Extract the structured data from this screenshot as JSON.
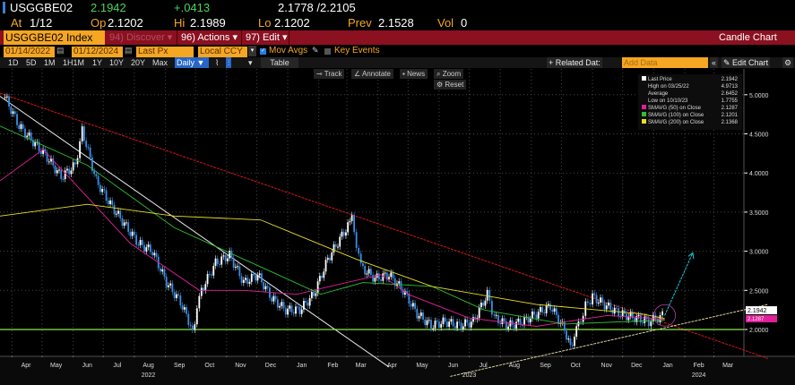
{
  "quote": {
    "ticker": "USGGBE02",
    "last": "2.1942",
    "change": "+.0413",
    "range": "2.1778 /2.2105",
    "at_label": "At",
    "at": "1/12",
    "op_label": "Op",
    "op": "2.1202",
    "hi_label": "Hi",
    "hi": "2.1989",
    "lo_label": "Lo",
    "lo": "2.1202",
    "prev_label": "Prev",
    "prev": "2.1528",
    "vol_label": "Vol",
    "vol": "0"
  },
  "menubar": {
    "security": "USGGBE02 Index",
    "discover": "94) Discover",
    "actions": "96) Actions",
    "edit": "97) Edit",
    "chart_type": "Candle Chart"
  },
  "controls": {
    "start_date": "01/14/2022",
    "end_date": "01/12/2024",
    "field": "Last Px",
    "currency": "Local CCY",
    "mov_avgs": "Mov Avgs",
    "mov_avgs_checked": true,
    "key_events": "Key Events",
    "key_events_checked": false,
    "periods": [
      "1D",
      "5D",
      "1M",
      "1H1M",
      "1Y",
      "10Y",
      "20Y",
      "Max"
    ],
    "frequency": "Daily",
    "table": "Table",
    "related_data": "+ Related Dat:",
    "add_data_placeholder": "Add Data",
    "edit_chart": "Edit Chart"
  },
  "chart_tools": {
    "track": "Track",
    "annotate": "Annotate",
    "news": "News",
    "zoom": "Zoom",
    "reset": "Reset"
  },
  "colors": {
    "accent": "#f5a623",
    "menubar": "#8b1020",
    "up": "#ffffff",
    "down": "#3a8ee6",
    "sma50": "#e0209a",
    "sma100": "#30c030",
    "sma200": "#e8e020",
    "trend_red": "#d01818",
    "trend_white": "#e8e8e8",
    "trend_support": "#d8d0a0",
    "arrow": "#20c8d8",
    "circle": "#b040b0",
    "hline": "#8ee84a"
  },
  "legend": [
    {
      "label": "Last Price",
      "value": "2.1942",
      "color": "#ffffff"
    },
    {
      "label": "High on 03/25/22",
      "value": "4.9713"
    },
    {
      "label": "Average",
      "value": "2.6452"
    },
    {
      "label": "Low on 10/10/23",
      "value": "1.7755"
    },
    {
      "label": "SMAVG (50)  on Close",
      "value": "2.1287",
      "color": "#e0209a"
    },
    {
      "label": "SMAVG (100)  on Close",
      "value": "2.1201",
      "color": "#30c030"
    },
    {
      "label": "SMAVG (200)  on Close",
      "value": "2.1368",
      "color": "#e8e020"
    }
  ],
  "chart_data": {
    "type": "candlestick",
    "ylim": [
      1.4,
      5.2
    ],
    "yticks": [
      "5.0000",
      "4.5000",
      "4.0000",
      "3.5000",
      "3.0000",
      "2.5000",
      "2.0000"
    ],
    "ytick_values": [
      5.0,
      4.5,
      4.0,
      3.5,
      3.0,
      2.5,
      2.0
    ],
    "last_price_tag": "2.1942",
    "sma50_tag": "2.1287",
    "xlim": [
      "2022-03-20",
      "2024-03-31"
    ],
    "xticks": [
      {
        "label": "Apr",
        "date": "2022-04-15"
      },
      {
        "label": "May",
        "date": "2022-05-15"
      },
      {
        "label": "Jun",
        "date": "2022-06-15"
      },
      {
        "label": "Jul",
        "date": "2022-07-15"
      },
      {
        "label": "Aug",
        "date": "2022-08-15"
      },
      {
        "label": "Sep",
        "date": "2022-09-15"
      },
      {
        "label": "Oct",
        "date": "2022-10-15"
      },
      {
        "label": "Nov",
        "date": "2022-11-15"
      },
      {
        "label": "Dec",
        "date": "2022-12-15"
      },
      {
        "label": "Jan",
        "date": "2023-01-15"
      },
      {
        "label": "Feb",
        "date": "2023-02-15"
      },
      {
        "label": "Mar",
        "date": "2023-03-15"
      },
      {
        "label": "Apr",
        "date": "2023-04-15"
      },
      {
        "label": "May",
        "date": "2023-05-15"
      },
      {
        "label": "Jun",
        "date": "2023-06-15"
      },
      {
        "label": "Jul",
        "date": "2023-07-15"
      },
      {
        "label": "Aug",
        "date": "2023-08-15"
      },
      {
        "label": "Sep",
        "date": "2023-09-15"
      },
      {
        "label": "Oct",
        "date": "2023-10-15"
      },
      {
        "label": "Nov",
        "date": "2023-11-15"
      },
      {
        "label": "Dec",
        "date": "2023-12-15"
      },
      {
        "label": "Jan",
        "date": "2024-01-15"
      },
      {
        "label": "Feb",
        "date": "2024-02-15"
      },
      {
        "label": "Mar",
        "date": "2024-03-15"
      }
    ],
    "years": [
      {
        "label": "2022",
        "date": "2022-08-15"
      },
      {
        "label": "2023",
        "date": "2023-07-01"
      },
      {
        "label": "2024",
        "date": "2024-02-15"
      }
    ],
    "grid": true,
    "price": [
      [
        "2022-03-25",
        4.97
      ],
      [
        "2022-04-08",
        4.6
      ],
      [
        "2022-04-22",
        4.4
      ],
      [
        "2022-05-06",
        4.2
      ],
      [
        "2022-05-20",
        3.95
      ],
      [
        "2022-06-03",
        4.1
      ],
      [
        "2022-06-10",
        4.55
      ],
      [
        "2022-06-24",
        3.9
      ],
      [
        "2022-07-08",
        3.6
      ],
      [
        "2022-07-22",
        3.35
      ],
      [
        "2022-08-05",
        3.1
      ],
      [
        "2022-08-19",
        3.0
      ],
      [
        "2022-09-02",
        2.6
      ],
      [
        "2022-09-16",
        2.35
      ],
      [
        "2022-09-28",
        2.0
      ],
      [
        "2022-10-07",
        2.5
      ],
      [
        "2022-10-21",
        2.85
      ],
      [
        "2022-11-04",
        2.95
      ],
      [
        "2022-11-18",
        2.6
      ],
      [
        "2022-12-02",
        2.7
      ],
      [
        "2022-12-16",
        2.4
      ],
      [
        "2022-12-30",
        2.25
      ],
      [
        "2023-01-13",
        2.25
      ],
      [
        "2023-01-27",
        2.45
      ],
      [
        "2023-02-10",
        2.9
      ],
      [
        "2023-02-24",
        3.2
      ],
      [
        "2023-03-06",
        3.4
      ],
      [
        "2023-03-15",
        2.8
      ],
      [
        "2023-03-29",
        2.65
      ],
      [
        "2023-04-12",
        2.7
      ],
      [
        "2023-04-26",
        2.5
      ],
      [
        "2023-05-10",
        2.2
      ],
      [
        "2023-05-24",
        2.05
      ],
      [
        "2023-06-07",
        2.1
      ],
      [
        "2023-06-21",
        2.05
      ],
      [
        "2023-07-05",
        2.1
      ],
      [
        "2023-07-19",
        2.45
      ],
      [
        "2023-07-26",
        2.15
      ],
      [
        "2023-08-09",
        2.05
      ],
      [
        "2023-08-23",
        2.1
      ],
      [
        "2023-09-06",
        2.2
      ],
      [
        "2023-09-20",
        2.3
      ],
      [
        "2023-10-04",
        2.0
      ],
      [
        "2023-10-10",
        1.78
      ],
      [
        "2023-10-18",
        2.05
      ],
      [
        "2023-10-25",
        2.3
      ],
      [
        "2023-11-01",
        2.42
      ],
      [
        "2023-11-15",
        2.3
      ],
      [
        "2023-11-29",
        2.2
      ],
      [
        "2023-12-13",
        2.15
      ],
      [
        "2023-12-27",
        2.1
      ],
      [
        "2024-01-12",
        2.19
      ]
    ],
    "series": [
      {
        "name": "SMAVG (50)  on Close",
        "color": "#e0209a",
        "points": [
          [
            "2022-03-20",
            3.9
          ],
          [
            "2022-05-02",
            4.3
          ],
          [
            "2022-07-28",
            3.1
          ],
          [
            "2022-10-05",
            2.5
          ],
          [
            "2022-11-18",
            2.5
          ],
          [
            "2023-01-10",
            2.45
          ],
          [
            "2023-02-12",
            2.55
          ],
          [
            "2023-04-04",
            2.7
          ],
          [
            "2023-05-01",
            2.45
          ],
          [
            "2023-06-30",
            2.15
          ],
          [
            "2023-09-06",
            2.04
          ],
          [
            "2023-11-16",
            2.18
          ],
          [
            "2024-01-12",
            2.13
          ]
        ]
      },
      {
        "name": "SMAVG (100)  on Close",
        "color": "#30c030",
        "points": [
          [
            "2022-03-20",
            4.6
          ],
          [
            "2022-06-15",
            4.1
          ],
          [
            "2022-09-10",
            3.3
          ],
          [
            "2022-12-05",
            2.8
          ],
          [
            "2023-02-03",
            2.45
          ],
          [
            "2023-03-17",
            2.6
          ],
          [
            "2023-05-25",
            2.55
          ],
          [
            "2023-07-16",
            2.25
          ],
          [
            "2023-10-04",
            2.07
          ],
          [
            "2024-01-12",
            2.12
          ]
        ]
      },
      {
        "name": "SMAVG (200)  on Close",
        "color": "#e8e020",
        "points": [
          [
            "2022-03-20",
            3.45
          ],
          [
            "2022-06-15",
            3.6
          ],
          [
            "2022-09-10",
            3.45
          ],
          [
            "2022-12-05",
            3.4
          ],
          [
            "2023-03-10",
            2.9
          ],
          [
            "2023-05-25",
            2.55
          ],
          [
            "2023-09-06",
            2.32
          ],
          [
            "2023-12-20",
            2.2
          ],
          [
            "2024-01-12",
            2.14
          ]
        ]
      }
    ],
    "annotations": [
      {
        "type": "line",
        "color": "#d01818",
        "from": [
          "2022-03-20",
          5.02
        ],
        "to": [
          "2024-04-24",
          1.63
        ]
      },
      {
        "type": "line",
        "color": "#e8e8e8",
        "from": [
          "2022-03-20",
          4.98
        ],
        "to": [
          "2023-04-12",
          1.52
        ]
      },
      {
        "type": "line",
        "color": "#d8d0a0",
        "from": [
          "2023-06-12",
          1.4
        ],
        "to": [
          "2024-04-24",
          2.32
        ]
      },
      {
        "type": "hline",
        "color": "#8ee84a",
        "value": 2.0
      },
      {
        "type": "circle",
        "color": "#b040b0",
        "at": [
          "2024-01-12",
          2.18
        ]
      },
      {
        "type": "arrow",
        "color": "#20c8d8",
        "from": [
          "2024-01-12",
          2.18
        ],
        "to": [
          "2024-02-09",
          2.98
        ]
      }
    ]
  }
}
